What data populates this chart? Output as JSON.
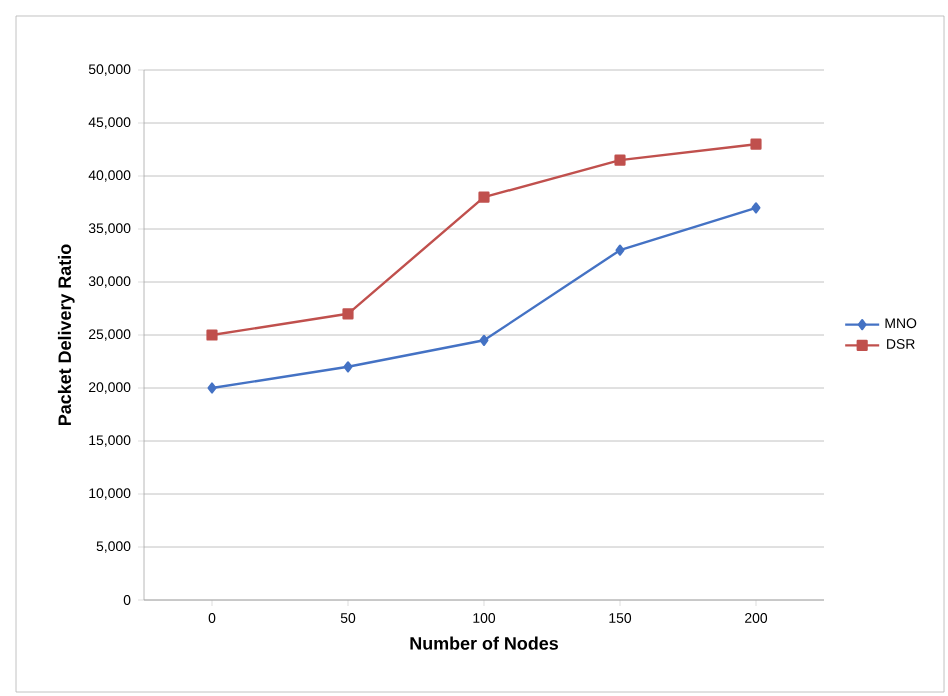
{
  "chart_data": {
    "type": "line",
    "xlabel": "Number of Nodes",
    "ylabel": "Packet Delivery Ratio",
    "categories": [
      "0",
      "50",
      "100",
      "150",
      "200"
    ],
    "series": [
      {
        "name": "MNO",
        "color": "#4472c4",
        "marker": "diamond",
        "values": [
          20000,
          22000,
          24500,
          33000,
          37000
        ]
      },
      {
        "name": "DSR",
        "color": "#c0504d",
        "marker": "square",
        "values": [
          25000,
          27000,
          38000,
          41500,
          43000
        ]
      }
    ],
    "ylim": [
      0,
      50000
    ],
    "yticks": [
      {
        "value": 0,
        "label": "0"
      },
      {
        "value": 5000,
        "label": "5,000"
      },
      {
        "value": 10000,
        "label": "10,000"
      },
      {
        "value": 15000,
        "label": "15,000"
      },
      {
        "value": 20000,
        "label": "20,000"
      },
      {
        "value": 25000,
        "label": "25,000"
      },
      {
        "value": 30000,
        "label": "30,000"
      },
      {
        "value": 35000,
        "label": "35,000"
      },
      {
        "value": 40000,
        "label": "40,000"
      },
      {
        "value": 45000,
        "label": "45,000"
      },
      {
        "value": 50000,
        "label": "50,000"
      }
    ],
    "grid": "y",
    "legend": "right"
  }
}
